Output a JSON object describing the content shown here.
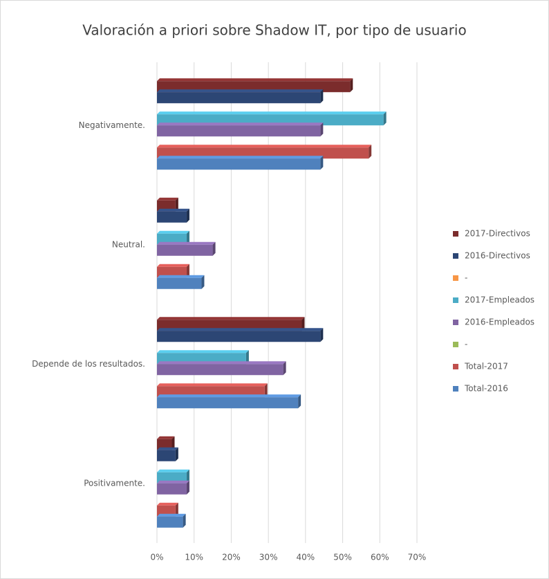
{
  "chart_data": {
    "type": "hbar",
    "title": "Valoración a priori sobre Shadow IT, por tipo de usuario",
    "categories": [
      "Negativamente.",
      "Neutral.",
      "Depende de los resultados.",
      "Positivamente."
    ],
    "series": [
      {
        "name": "2017-Directivos",
        "color": "#7b2c2c",
        "values": [
          52,
          5,
          39,
          4
        ]
      },
      {
        "name": "2016-Directivos",
        "color": "#2c4674",
        "values": [
          44,
          8,
          44,
          5
        ]
      },
      {
        "name": "-",
        "color": "#f79646",
        "values": [
          null,
          null,
          null,
          null
        ]
      },
      {
        "name": "2017-Empleados",
        "color": "#4bacc6",
        "values": [
          61,
          8,
          24,
          8
        ]
      },
      {
        "name": "2016-Empleados",
        "color": "#8064a2",
        "values": [
          44,
          15,
          34,
          8
        ]
      },
      {
        "name": "-",
        "color": "#9bbb59",
        "values": [
          null,
          null,
          null,
          null
        ]
      },
      {
        "name": "Total-2017",
        "color": "#c0504d",
        "values": [
          57,
          8,
          29,
          5
        ]
      },
      {
        "name": "Total-2016",
        "color": "#4f81bd",
        "values": [
          44,
          12,
          38,
          7
        ]
      }
    ],
    "xlim": [
      0,
      70
    ],
    "xticks": [
      {
        "value": 0,
        "label": "0%"
      },
      {
        "value": 10,
        "label": "10%"
      },
      {
        "value": 20,
        "label": "20%"
      },
      {
        "value": 30,
        "label": "30%"
      },
      {
        "value": 40,
        "label": "40%"
      },
      {
        "value": 50,
        "label": "50%"
      },
      {
        "value": 60,
        "label": "60%"
      },
      {
        "value": 70,
        "label": "70%"
      }
    ],
    "grid": true,
    "legend": "right"
  }
}
